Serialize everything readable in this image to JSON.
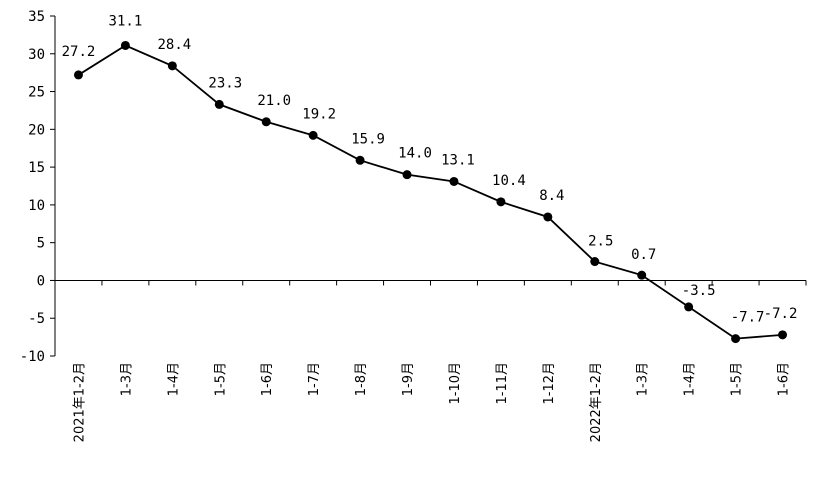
{
  "chart_data": {
    "type": "line",
    "title": "",
    "xlabel": "",
    "ylabel": "",
    "categories": [
      "2021年1-2月",
      "1-3月",
      "1-4月",
      "1-5月",
      "1-6月",
      "1-7月",
      "1-8月",
      "1-9月",
      "1-10月",
      "1-11月",
      "1-12月",
      "2022年1-2月",
      "1-3月",
      "1-4月",
      "1-5月",
      "1-6月"
    ],
    "series": [
      {
        "values": [
          27.2,
          31.1,
          28.4,
          23.3,
          21.0,
          19.2,
          15.9,
          14.0,
          13.1,
          10.4,
          8.4,
          2.5,
          0.7,
          -3.5,
          -7.7,
          -7.2
        ],
        "labels": [
          "27.2",
          "31.1",
          "28.4",
          "23.3",
          "21.0",
          "19.2",
          "15.9",
          "14.0",
          "13.1",
          "10.4",
          "8.4",
          "2.5",
          "0.7",
          "-3.5",
          "-7.7",
          "-7.2"
        ]
      }
    ],
    "ylim": [
      -10,
      35
    ],
    "yticks": [
      "35",
      "30",
      "25",
      "20",
      "15",
      "10",
      "5",
      "0",
      "-5",
      "-10"
    ],
    "grid": false,
    "legend": "none",
    "colors": {
      "line": "#000000",
      "marker": "#000000",
      "axis": "#000000"
    }
  }
}
